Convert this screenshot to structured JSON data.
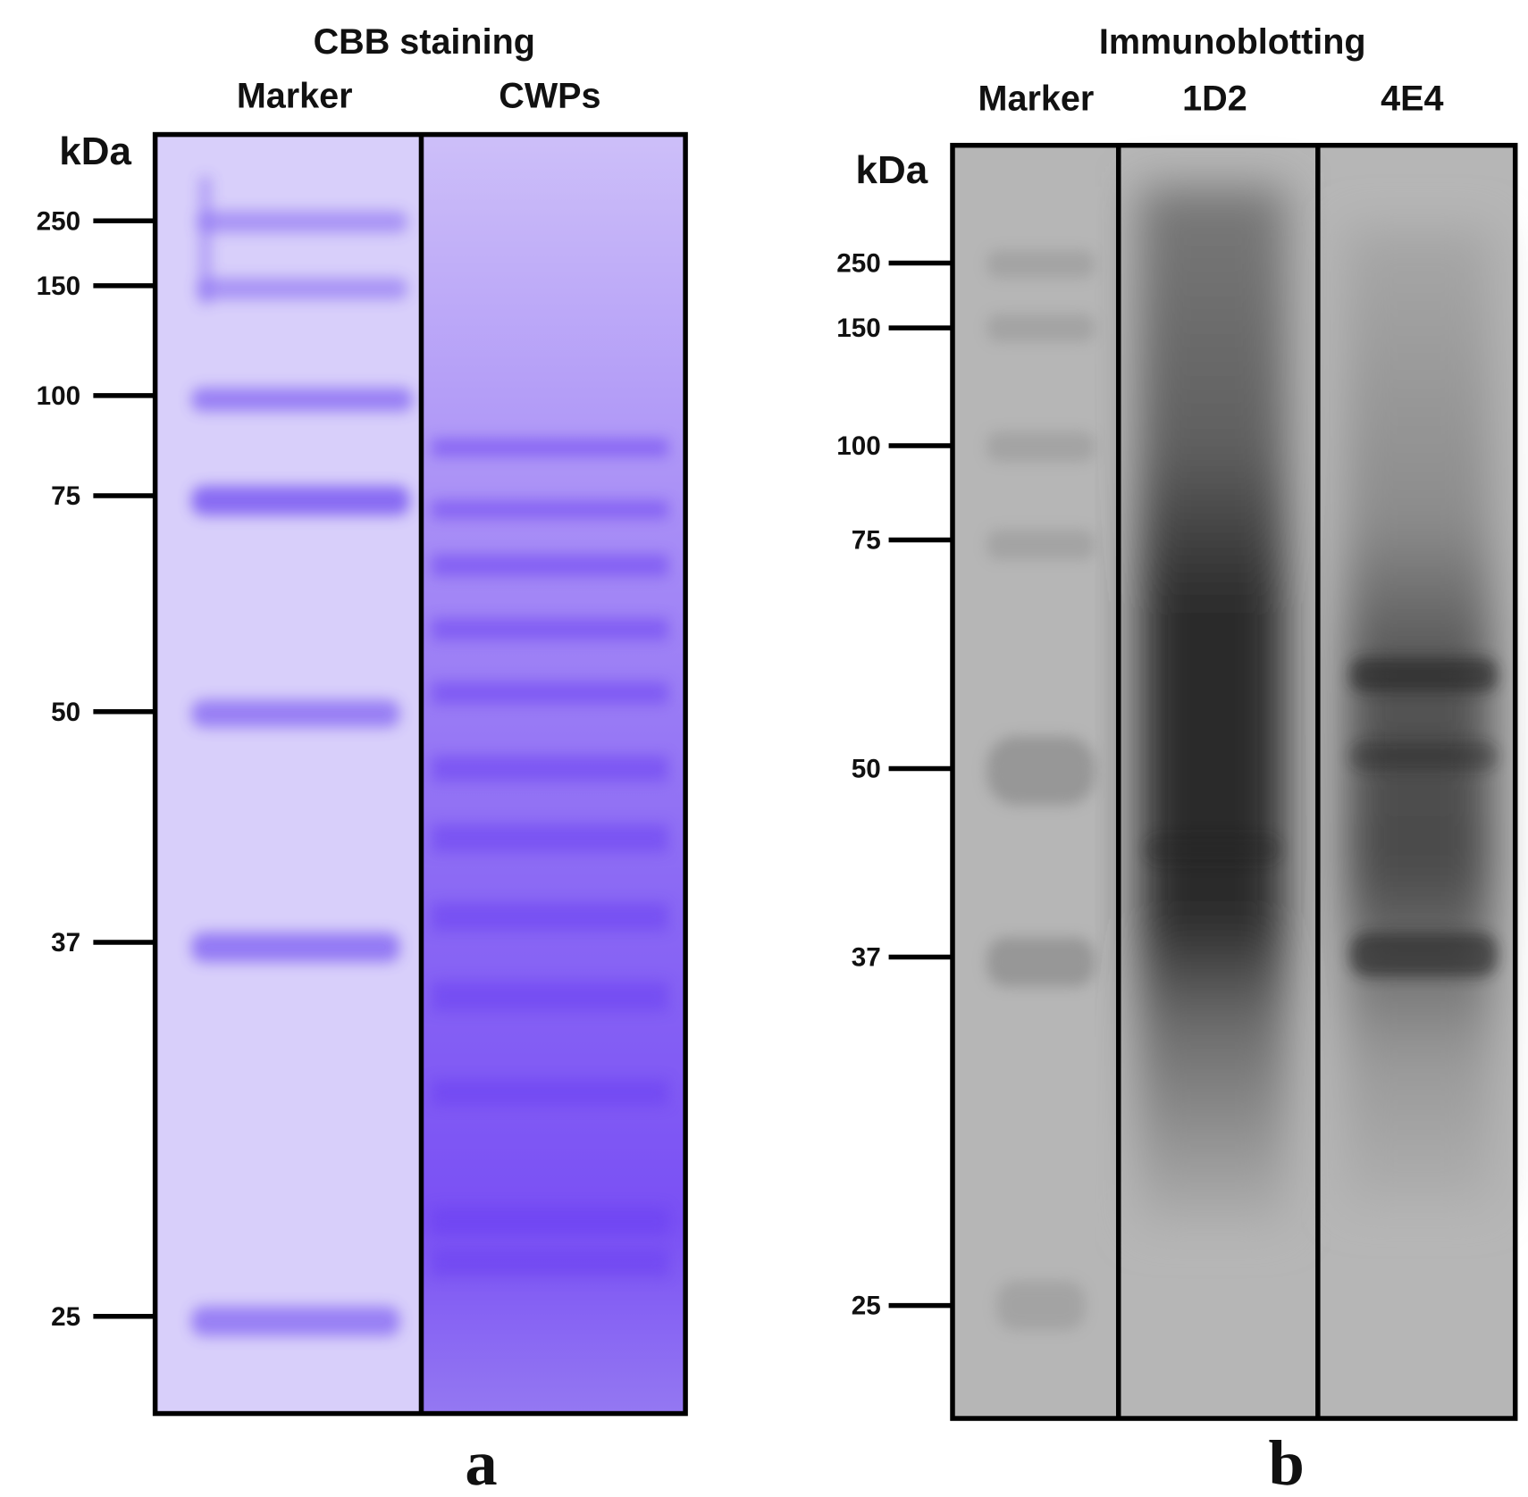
{
  "panels": [
    {
      "title": "CBB staining",
      "lanes": [
        "Marker",
        "CWPs"
      ],
      "unit": "kDa",
      "markers": [
        "250",
        "150",
        "100",
        "75",
        "50",
        "37",
        "25"
      ],
      "letter": "a"
    },
    {
      "title": "Immunoblotting",
      "lanes": [
        "Marker",
        "1D2",
        "4E4"
      ],
      "unit": "kDa",
      "markers": [
        "250",
        "150",
        "100",
        "75",
        "50",
        "37",
        "25"
      ],
      "letter": "b"
    }
  ]
}
